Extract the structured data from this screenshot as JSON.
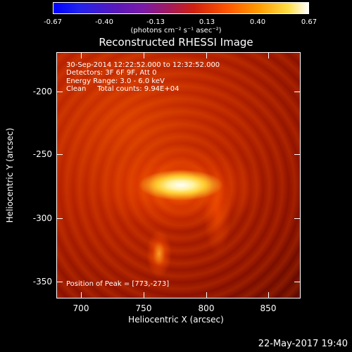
{
  "colorbar": {
    "ticks": [
      "-0.67",
      "-0.40",
      "-0.13",
      "0.13",
      "0.40",
      "0.67"
    ],
    "unit": "(photons cm⁻² s⁻¹ asec⁻²)"
  },
  "title": "Reconstructed RHESSI Image",
  "info": {
    "line1": "30-Sep-2014 12:22:52.000 to 12:32:52.000",
    "line2": "Detectors: 3F 6F 9F, Att 0",
    "line3": "Energy Range: 3.0 - 6.0 keV",
    "line4": "Clean     Total counts: 9.94E+04",
    "peak": "Position of Peak = [773,-273]"
  },
  "axes": {
    "x_label": "Heliocentric X (arcsec)",
    "y_label": "Heliocentric Y (arcsec)",
    "x_ticks": [
      "700",
      "750",
      "800",
      "850"
    ],
    "y_ticks": [
      "-200",
      "-250",
      "-300",
      "-350"
    ]
  },
  "timestamp": "22-May-2017 19:40"
}
